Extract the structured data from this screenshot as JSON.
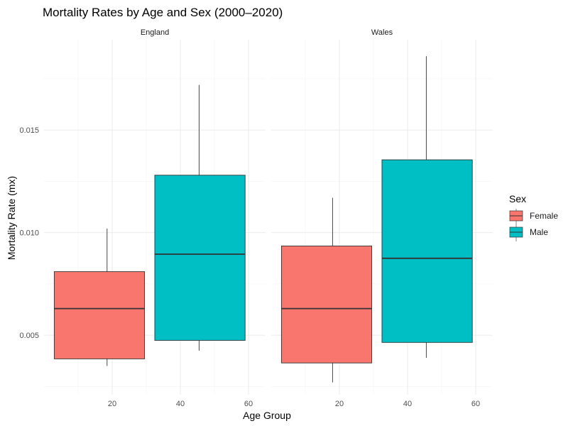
{
  "chart_data": {
    "type": "boxplot",
    "title": "Mortality Rates by Age and Sex (2000–2020)",
    "xlabel": "Age Group",
    "ylabel": "Mortality Rate (mx)",
    "xlim": [
      0,
      65
    ],
    "ylim": [
      0.0021,
      0.0194
    ],
    "x_ticks": [
      20,
      40,
      60
    ],
    "y_ticks": [
      0.005,
      0.01,
      0.015
    ],
    "y_tick_labels": [
      "0.005",
      "0.010",
      "0.015"
    ],
    "legend": {
      "title": "Sex",
      "position": "right",
      "entries": [
        {
          "name": "Female",
          "color": "#F8766D"
        },
        {
          "name": "Male",
          "color": "#00BFC4"
        }
      ]
    },
    "panels": [
      {
        "name": "England",
        "boxes": [
          {
            "group": "Female",
            "x_range": [
              3,
              29.5
            ],
            "whisker_x": 18.5,
            "min": 0.0035,
            "q1": 0.00385,
            "median": 0.0063,
            "q3": 0.0081,
            "max": 0.0102
          },
          {
            "group": "Male",
            "x_range": [
              32.5,
              59
            ],
            "whisker_x": 45.5,
            "min": 0.00425,
            "q1": 0.00475,
            "median": 0.00895,
            "q3": 0.0128,
            "max": 0.0172
          }
        ]
      },
      {
        "name": "Wales",
        "boxes": [
          {
            "group": "Female",
            "x_range": [
              3,
              29.5
            ],
            "whisker_x": 18,
            "min": 0.0027,
            "q1": 0.00365,
            "median": 0.0063,
            "q3": 0.00935,
            "max": 0.0117
          },
          {
            "group": "Male",
            "x_range": [
              32.5,
              59
            ],
            "whisker_x": 45.5,
            "min": 0.0039,
            "q1": 0.00465,
            "median": 0.00875,
            "q3": 0.01355,
            "max": 0.0186
          }
        ]
      }
    ]
  }
}
